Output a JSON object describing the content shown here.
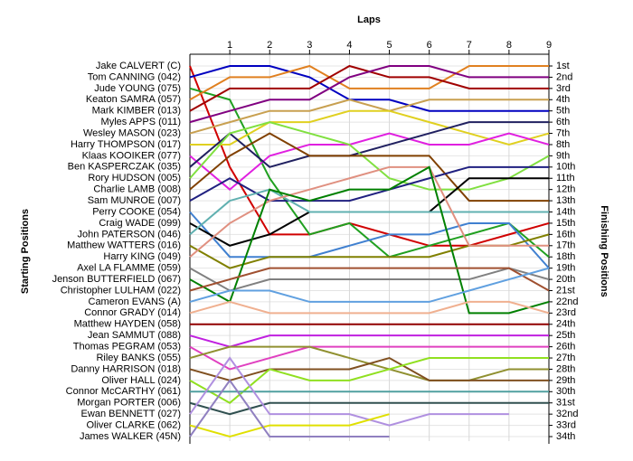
{
  "chart_data": {
    "type": "line",
    "title": "Laps",
    "ylabel": "Starting Positions",
    "y2label": "Finishing Positions",
    "x": [
      0,
      1,
      2,
      3,
      4,
      5,
      6,
      7,
      8,
      9
    ],
    "xlim": [
      0,
      9
    ],
    "xticks": [
      1,
      2,
      3,
      4,
      5,
      6,
      7,
      8,
      9
    ],
    "ylim": [
      1,
      34
    ],
    "inverted": true,
    "grid": true,
    "y2lim": [
      1,
      34
    ],
    "y2ticks": [
      {
        "value": 1,
        "label": "1st"
      },
      {
        "value": 2,
        "label": "2nd"
      },
      {
        "value": 3,
        "label": "3rd"
      },
      {
        "value": 4,
        "label": "4th"
      },
      {
        "value": 5,
        "label": "5th"
      },
      {
        "value": 6,
        "label": "6th"
      },
      {
        "value": 7,
        "label": "7th"
      },
      {
        "value": 8,
        "label": "8th"
      },
      {
        "value": 9,
        "label": "9th"
      },
      {
        "value": 10,
        "label": "10th"
      },
      {
        "value": 11,
        "label": "11th"
      },
      {
        "value": 12,
        "label": "12th"
      },
      {
        "value": 13,
        "label": "13th"
      },
      {
        "value": 14,
        "label": "14th"
      },
      {
        "value": 15,
        "label": "15th"
      },
      {
        "value": 16,
        "label": "16th"
      },
      {
        "value": 17,
        "label": "17th"
      },
      {
        "value": 18,
        "label": "18th"
      },
      {
        "value": 19,
        "label": "19th"
      },
      {
        "value": 20,
        "label": "20th"
      },
      {
        "value": 21,
        "label": "21st"
      },
      {
        "value": 22,
        "label": "22nd"
      },
      {
        "value": 23,
        "label": "23rd"
      },
      {
        "value": 24,
        "label": "24th"
      },
      {
        "value": 25,
        "label": "25th"
      },
      {
        "value": 26,
        "label": "26th"
      },
      {
        "value": 27,
        "label": "27th"
      },
      {
        "value": 28,
        "label": "28th"
      },
      {
        "value": 29,
        "label": "29th"
      },
      {
        "value": 30,
        "label": "30th"
      },
      {
        "value": 31,
        "label": "31st"
      },
      {
        "value": 32,
        "label": "32nd"
      },
      {
        "value": 33,
        "label": "33rd"
      },
      {
        "value": 34,
        "label": "34th"
      }
    ],
    "series": [
      {
        "name": "Jake CALVERT (C)",
        "color": "#d00000",
        "values": [
          1,
          10,
          16,
          16,
          15,
          16,
          17,
          17,
          16,
          15
        ]
      },
      {
        "name": "Tom CANNING (042)",
        "color": "#0000c0",
        "values": [
          2,
          1,
          1,
          2,
          4,
          4,
          5,
          5,
          5,
          5
        ]
      },
      {
        "name": "Jude YOUNG (075)",
        "color": "#20a020",
        "values": [
          3,
          4,
          11,
          16,
          15,
          18,
          17,
          16,
          15,
          18
        ]
      },
      {
        "name": "Keaton SAMRA (057)",
        "color": "#e08020",
        "values": [
          4,
          2,
          2,
          1,
          3,
          3,
          3,
          1,
          1,
          1
        ]
      },
      {
        "name": "Mark KIMBER (013)",
        "color": "#a00000",
        "values": [
          5,
          3,
          3,
          3,
          1,
          2,
          2,
          3,
          3,
          3
        ]
      },
      {
        "name": "Myles APPS (011)",
        "color": "#800080",
        "values": [
          6,
          5,
          4,
          4,
          2,
          1,
          1,
          2,
          2,
          2
        ]
      },
      {
        "name": "Wesley MASON (023)",
        "color": "#c8a050",
        "values": [
          7,
          6,
          5,
          5,
          4,
          5,
          4,
          4,
          4,
          4
        ]
      },
      {
        "name": "Harry THOMPSON (017)",
        "color": "#e0d020",
        "values": [
          8,
          8,
          6,
          6,
          5,
          5,
          6,
          7,
          8,
          7
        ]
      },
      {
        "name": "Klaas KOOIKER (077)",
        "color": "#e020e0",
        "values": [
          9,
          12,
          9,
          8,
          8,
          7,
          8,
          8,
          7,
          8
        ]
      },
      {
        "name": "Ben KASPERCZAK (035)",
        "color": "#202060",
        "values": [
          10,
          7,
          10,
          9,
          9,
          8,
          7,
          6,
          6,
          6
        ]
      },
      {
        "name": "Rory HUDSON (005)",
        "color": "#80e040",
        "values": [
          11,
          7,
          6,
          7,
          8,
          11,
          12,
          12,
          11,
          9
        ]
      },
      {
        "name": "Charlie LAMB (008)",
        "color": "#804000",
        "values": [
          12,
          9,
          7,
          9,
          9,
          9,
          9,
          13,
          13,
          13
        ]
      },
      {
        "name": "Sam MUNROE (007)",
        "color": "#202080",
        "values": [
          13,
          11,
          13,
          13,
          13,
          12,
          11,
          10,
          10,
          10
        ]
      },
      {
        "name": "Perry COOKE (054)",
        "color": "#4080d0",
        "values": [
          14,
          18,
          18,
          18,
          17,
          16,
          16,
          15,
          15,
          19
        ]
      },
      {
        "name": "Craig WADE (099)",
        "color": "#000000",
        "values": [
          15,
          17,
          16,
          14,
          14,
          14,
          14,
          11,
          11,
          11
        ]
      },
      {
        "name": "John PATERSON (046)",
        "color": "#60b0b0",
        "values": [
          16,
          13,
          12,
          14,
          14,
          14,
          14,
          14,
          14,
          14
        ]
      },
      {
        "name": "Matthew WATTERS (016)",
        "color": "#808000",
        "values": [
          17,
          19,
          18,
          18,
          18,
          18,
          18,
          17,
          17,
          16
        ]
      },
      {
        "name": "Harry KING (049)",
        "color": "#e09080",
        "values": [
          18,
          15,
          13,
          12,
          11,
          10,
          10,
          17,
          17,
          17
        ]
      },
      {
        "name": "Axel LA FLAMME (059)",
        "color": "#808080",
        "values": [
          19,
          21,
          20,
          20,
          20,
          20,
          20,
          20,
          19,
          20
        ]
      },
      {
        "name": "Jenson BUTTERFIELD (067)",
        "color": "#008000",
        "values": [
          20,
          22,
          12,
          13,
          12,
          12,
          10,
          23,
          23,
          22
        ]
      },
      {
        "name": "Christopher LULHAM (022)",
        "color": "#a05030",
        "values": [
          21,
          20,
          19,
          19,
          19,
          19,
          19,
          19,
          19,
          21
        ]
      },
      {
        "name": "Cameron EVANS (A)",
        "color": "#60a0e0",
        "values": [
          22,
          21,
          21,
          22,
          22,
          22,
          22,
          21,
          20,
          19
        ]
      },
      {
        "name": "Connor GRADY (014)",
        "color": "#f0b090",
        "values": [
          23,
          22,
          23,
          23,
          23,
          23,
          23,
          22,
          22,
          23
        ]
      },
      {
        "name": "Matthew HAYDEN (058)",
        "color": "#900000",
        "values": [
          24,
          24,
          24,
          24,
          24,
          24,
          24,
          24,
          24,
          24
        ]
      },
      {
        "name": "Jean SAMMUT (088)",
        "color": "#c020e0",
        "values": [
          25,
          26,
          25,
          25,
          25,
          25,
          25,
          25,
          25,
          25
        ]
      },
      {
        "name": "Thomas PEGRAM (053)",
        "color": "#e040c0",
        "values": [
          26,
          28,
          27,
          26,
          26,
          26,
          26,
          26,
          26,
          26
        ]
      },
      {
        "name": "Riley BANKS (055)",
        "color": "#909030",
        "values": [
          27,
          26,
          26,
          26,
          27,
          28,
          29,
          29,
          28,
          28
        ]
      },
      {
        "name": "Danny HARRISON (018)",
        "color": "#805020",
        "values": [
          28,
          29,
          28,
          28,
          28,
          27,
          29,
          29,
          29,
          29
        ]
      },
      {
        "name": "Oliver HALL (024)",
        "color": "#90e020",
        "values": [
          29,
          31,
          28,
          29,
          29,
          28,
          27,
          27,
          27,
          27
        ]
      },
      {
        "name": "Connor McCARTHY (061)",
        "color": "#50a0a0",
        "values": [
          30,
          30,
          30,
          30,
          30,
          30,
          30,
          30,
          30,
          30
        ]
      },
      {
        "name": "Morgan PORTER (006)",
        "color": "#305050",
        "values": [
          31,
          32,
          31,
          31,
          31,
          31,
          31,
          31,
          31,
          31
        ]
      },
      {
        "name": "Ewan BENNETT (027)",
        "color": "#b090e0",
        "values": [
          32,
          27,
          32,
          32,
          32,
          33,
          32,
          32,
          32,
          null
        ]
      },
      {
        "name": "Oliver CLARKE (062)",
        "color": "#e0e000",
        "values": [
          33,
          34,
          33,
          33,
          33,
          32,
          null,
          null,
          null,
          null
        ]
      },
      {
        "name": "James WALKER (45N)",
        "color": "#9080c0",
        "values": [
          34,
          29,
          34,
          34,
          34,
          34,
          null,
          null,
          null,
          null
        ]
      }
    ]
  }
}
